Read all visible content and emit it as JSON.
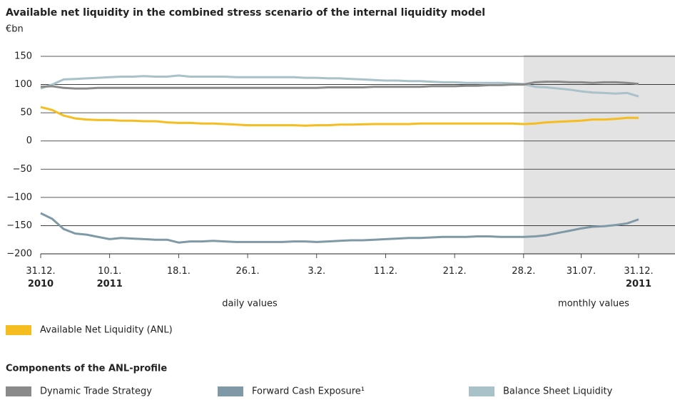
{
  "chart_data": {
    "type": "line",
    "title": "Available net liquidity in the combined stress scenario of the internal liquidity model",
    "unit": "€bn",
    "categories": [
      "31.12.\n2010",
      null,
      null,
      null,
      null,
      null,
      "10.1.\n2011",
      null,
      null,
      null,
      null,
      null,
      "18.1.",
      null,
      null,
      null,
      null,
      null,
      "26.1.",
      null,
      null,
      null,
      null,
      null,
      "3.2.",
      null,
      null,
      null,
      null,
      null,
      "11.2.",
      null,
      null,
      null,
      null,
      null,
      "21.2.",
      null,
      null,
      null,
      null,
      null,
      "28.2.",
      null,
      null,
      null,
      null,
      "31.07.",
      null,
      null,
      null,
      null,
      "31.12.\n2011"
    ],
    "annotations": [
      "daily values",
      "monthly values"
    ],
    "legend_title": "Components of the ANL-profile",
    "series": [
      {
        "name": "Available Net Liquidity (ANL)",
        "color": "#f5bd1f",
        "values": [
          60,
          55,
          45,
          40,
          38,
          37,
          37,
          36,
          36,
          35,
          35,
          33,
          32,
          32,
          31,
          31,
          30,
          29,
          28,
          28,
          28,
          28,
          28,
          27,
          28,
          28,
          29,
          29,
          29.5,
          30,
          30,
          30,
          30,
          31,
          31,
          31,
          31,
          31,
          31,
          31,
          31,
          31,
          30,
          31,
          33,
          34,
          35,
          36,
          38,
          38,
          39,
          41,
          41
        ]
      },
      {
        "name": "Dynamic Trade Strategy",
        "color": "#8a8a8a",
        "values": [
          96,
          97,
          94,
          93,
          93,
          94,
          94,
          94,
          94,
          94,
          94,
          94,
          94,
          94,
          94,
          94,
          94,
          94,
          94,
          94,
          94,
          94,
          94,
          94,
          94,
          95,
          95,
          95,
          95,
          96,
          96,
          96,
          96,
          96,
          97,
          97,
          97,
          98,
          98,
          99,
          99,
          100,
          100,
          104,
          105,
          105,
          104,
          104,
          103,
          104,
          104,
          103,
          101
        ]
      },
      {
        "name": "Forward Cash Exposure¹",
        "color": "#7f9aa6",
        "values": [
          -128,
          -138,
          -156,
          -164,
          -166,
          -170,
          -174,
          -172,
          -173,
          -174,
          -175,
          -175,
          -180,
          -178,
          -178,
          -177,
          -178,
          -179,
          -179,
          -179,
          -179,
          -179,
          -178,
          -178,
          -179,
          -178,
          -177,
          -176,
          -176,
          -175,
          -174,
          -173,
          -172,
          -172,
          -171,
          -170,
          -170,
          -170,
          -169,
          -169,
          -170,
          -170,
          -170,
          -169,
          -167,
          -163,
          -159,
          -155,
          -152,
          -151,
          -149,
          -146,
          -139
        ]
      },
      {
        "name": "Balance Sheet Liquidity",
        "color": "#a9c1c8",
        "values": [
          93,
          100,
          109,
          110,
          111,
          112,
          113,
          114,
          114,
          115,
          114,
          114,
          116,
          114,
          114,
          114,
          114,
          113,
          113,
          113,
          113,
          113,
          113,
          112,
          112,
          111,
          111,
          110,
          109,
          108,
          107,
          107,
          106,
          106,
          105,
          104,
          104,
          103,
          103,
          103,
          103,
          102,
          101,
          96,
          95,
          93,
          91,
          88,
          86,
          85,
          84,
          85,
          79
        ]
      }
    ],
    "ylim": [
      -200,
      150
    ],
    "yticks": [
      {
        "value": -200,
        "label": "−200"
      },
      {
        "value": -150,
        "label": "−150"
      },
      {
        "value": -100,
        "label": "−100"
      },
      {
        "value": -50,
        "label": "−50"
      },
      0,
      50,
      100,
      150
    ],
    "grid": true
  }
}
